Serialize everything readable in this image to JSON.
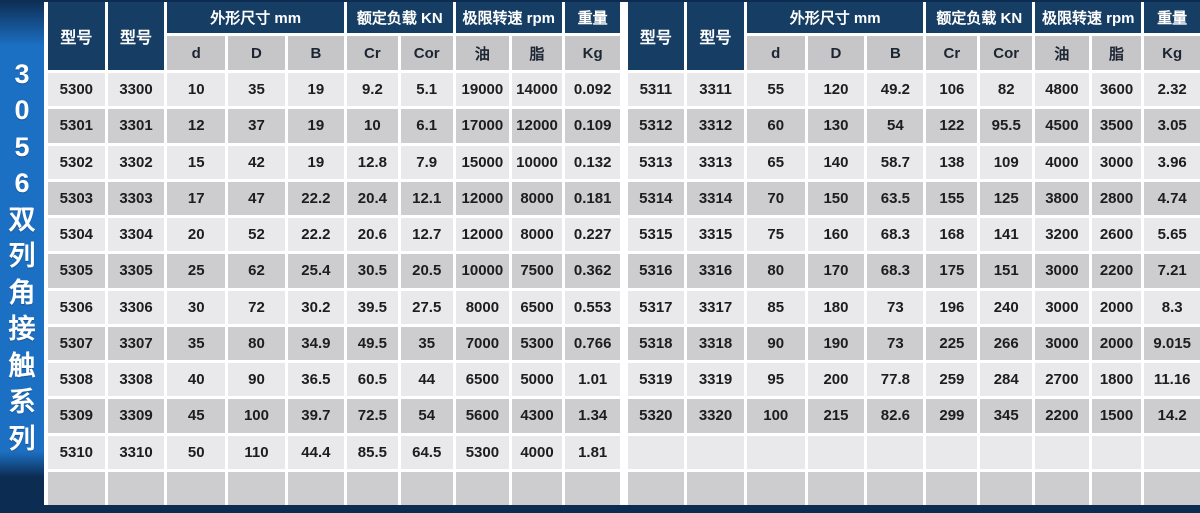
{
  "sidebar": {
    "series_label": "3056双列角接触系列",
    "chars": [
      "3",
      "0",
      "5",
      "6",
      "双",
      "列",
      "角",
      "接",
      "触",
      "系",
      "列"
    ]
  },
  "colors": {
    "page_navy": "#0d2c52",
    "sidebar_blue": "#1c70c4",
    "header_navy": "#163d63",
    "subheader_gray": "#c6c6c9",
    "row_light": "#e9e9eb",
    "row_dark": "#cdcdd0",
    "grid_line": "#ffffff"
  },
  "table": {
    "group_headers": [
      {
        "label": "型号",
        "span": 1,
        "rowspan": 2
      },
      {
        "label": "型号",
        "span": 1,
        "rowspan": 2
      },
      {
        "label": "外形尺寸 mm",
        "span": 3,
        "rowspan": 1
      },
      {
        "label": "额定负载 KN",
        "span": 2,
        "rowspan": 1
      },
      {
        "label": "极限转速 rpm",
        "span": 2,
        "rowspan": 1
      },
      {
        "label": "重量",
        "span": 1,
        "rowspan": 1
      }
    ],
    "sub_headers": [
      "d",
      "D",
      "B",
      "Cr",
      "Cor",
      "油",
      "脂",
      "Kg"
    ],
    "left_rows": [
      [
        "5300",
        "3300",
        "10",
        "35",
        "19",
        "9.2",
        "5.1",
        "19000",
        "14000",
        "0.092"
      ],
      [
        "5301",
        "3301",
        "12",
        "37",
        "19",
        "10",
        "6.1",
        "17000",
        "12000",
        "0.109"
      ],
      [
        "5302",
        "3302",
        "15",
        "42",
        "19",
        "12.8",
        "7.9",
        "15000",
        "10000",
        "0.132"
      ],
      [
        "5303",
        "3303",
        "17",
        "47",
        "22.2",
        "20.4",
        "12.1",
        "12000",
        "8000",
        "0.181"
      ],
      [
        "5304",
        "3304",
        "20",
        "52",
        "22.2",
        "20.6",
        "12.7",
        "12000",
        "8000",
        "0.227"
      ],
      [
        "5305",
        "3305",
        "25",
        "62",
        "25.4",
        "30.5",
        "20.5",
        "10000",
        "7500",
        "0.362"
      ],
      [
        "5306",
        "3306",
        "30",
        "72",
        "30.2",
        "39.5",
        "27.5",
        "8000",
        "6500",
        "0.553"
      ],
      [
        "5307",
        "3307",
        "35",
        "80",
        "34.9",
        "49.5",
        "35",
        "7000",
        "5300",
        "0.766"
      ],
      [
        "5308",
        "3308",
        "40",
        "90",
        "36.5",
        "60.5",
        "44",
        "6500",
        "5000",
        "1.01"
      ],
      [
        "5309",
        "3309",
        "45",
        "100",
        "39.7",
        "72.5",
        "54",
        "5600",
        "4300",
        "1.34"
      ],
      [
        "5310",
        "3310",
        "50",
        "110",
        "44.4",
        "85.5",
        "64.5",
        "5300",
        "4000",
        "1.81"
      ],
      [
        "",
        "",
        "",
        "",
        "",
        "",
        "",
        "",
        "",
        ""
      ]
    ],
    "right_rows": [
      [
        "5311",
        "3311",
        "55",
        "120",
        "49.2",
        "106",
        "82",
        "4800",
        "3600",
        "2.32"
      ],
      [
        "5312",
        "3312",
        "60",
        "130",
        "54",
        "122",
        "95.5",
        "4500",
        "3500",
        "3.05"
      ],
      [
        "5313",
        "3313",
        "65",
        "140",
        "58.7",
        "138",
        "109",
        "4000",
        "3000",
        "3.96"
      ],
      [
        "5314",
        "3314",
        "70",
        "150",
        "63.5",
        "155",
        "125",
        "3800",
        "2800",
        "4.74"
      ],
      [
        "5315",
        "3315",
        "75",
        "160",
        "68.3",
        "168",
        "141",
        "3200",
        "2600",
        "5.65"
      ],
      [
        "5316",
        "3316",
        "80",
        "170",
        "68.3",
        "175",
        "151",
        "3000",
        "2200",
        "7.21"
      ],
      [
        "5317",
        "3317",
        "85",
        "180",
        "73",
        "196",
        "240",
        "3000",
        "2000",
        "8.3"
      ],
      [
        "5318",
        "3318",
        "90",
        "190",
        "73",
        "225",
        "266",
        "3000",
        "2000",
        "9.015"
      ],
      [
        "5319",
        "3319",
        "95",
        "200",
        "77.8",
        "259",
        "284",
        "2700",
        "1800",
        "11.16"
      ],
      [
        "5320",
        "3320",
        "100",
        "215",
        "82.6",
        "299",
        "345",
        "2200",
        "1500",
        "14.2"
      ],
      [
        "",
        "",
        "",
        "",
        "",
        "",
        "",
        "",
        "",
        ""
      ],
      [
        "",
        "",
        "",
        "",
        "",
        "",
        "",
        "",
        "",
        ""
      ]
    ]
  }
}
